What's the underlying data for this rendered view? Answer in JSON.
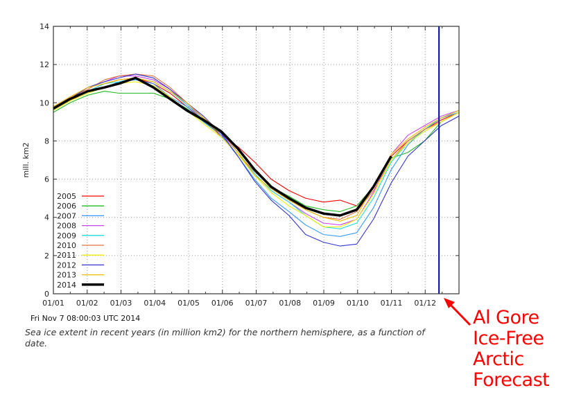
{
  "chart_data": {
    "type": "line",
    "ylabel": "mill. km2",
    "ylim": [
      0,
      14
    ],
    "yticks": [
      "0",
      "2",
      "4",
      "6",
      "8",
      "10",
      "12",
      "14"
    ],
    "xlim_days": [
      0,
      365
    ],
    "xticks": [
      "01/01",
      "01/02",
      "01/03",
      "01/04",
      "01/05",
      "01/06",
      "01/07",
      "01/08",
      "01/09",
      "01/10",
      "01/11",
      "01/12"
    ],
    "grid": true,
    "legend_position": "bottom-left",
    "x_days": [
      0,
      15,
      31,
      46,
      59,
      74,
      90,
      105,
      120,
      135,
      151,
      166,
      181,
      196,
      212,
      227,
      243,
      258,
      273,
      288,
      304,
      319,
      334,
      349,
      365
    ],
    "series": [
      {
        "name": "2005",
        "color": "#ff0000",
        "values": [
          9.6,
          10.1,
          10.6,
          11.0,
          11.2,
          11.3,
          11.0,
          10.5,
          9.8,
          9.1,
          8.3,
          7.7,
          6.9,
          6.0,
          5.4,
          5.0,
          4.8,
          4.9,
          4.6,
          5.6,
          7.2,
          8.0,
          8.6,
          9.1,
          9.5
        ]
      },
      {
        "name": "2006",
        "color": "#22bb22",
        "values": [
          9.5,
          10.0,
          10.4,
          10.6,
          10.5,
          10.5,
          10.5,
          10.2,
          9.7,
          9.0,
          8.4,
          7.6,
          6.5,
          5.6,
          5.1,
          4.6,
          4.4,
          4.3,
          4.6,
          5.6,
          7.1,
          7.4,
          8.0,
          9.0,
          9.5
        ]
      },
      {
        "name": "2007",
        "color": "#3399ff",
        "values": [
          9.6,
          10.2,
          10.6,
          10.8,
          11.1,
          11.2,
          11.0,
          10.3,
          9.8,
          9.0,
          8.3,
          7.2,
          6.0,
          5.0,
          4.3,
          3.6,
          3.1,
          3.0,
          3.2,
          4.5,
          6.5,
          7.8,
          8.6,
          9.2,
          9.5
        ]
      },
      {
        "name": "2008",
        "color": "#cc44ee",
        "values": [
          9.7,
          10.3,
          10.8,
          11.1,
          11.4,
          11.4,
          11.2,
          10.7,
          9.9,
          9.2,
          8.4,
          7.4,
          6.3,
          5.4,
          4.8,
          4.2,
          3.7,
          3.6,
          3.9,
          5.3,
          7.3,
          8.3,
          8.8,
          9.3,
          9.6
        ]
      },
      {
        "name": "2009",
        "color": "#22dddd",
        "values": [
          9.6,
          10.2,
          10.6,
          11.0,
          11.1,
          11.3,
          11.1,
          10.6,
          9.9,
          9.1,
          8.5,
          7.4,
          6.3,
          5.4,
          4.8,
          4.1,
          3.5,
          3.4,
          3.7,
          5.0,
          6.9,
          7.9,
          8.6,
          9.2,
          9.6
        ]
      },
      {
        "name": "2010",
        "color": "#e07040",
        "values": [
          9.8,
          10.3,
          10.7,
          11.2,
          11.4,
          11.5,
          11.4,
          10.8,
          10.0,
          9.2,
          8.2,
          7.3,
          6.4,
          5.6,
          5.0,
          4.4,
          4.0,
          3.9,
          4.3,
          5.4,
          7.0,
          8.0,
          8.6,
          9.0,
          9.5
        ]
      },
      {
        "name": "2011",
        "color": "#eeee00",
        "values": [
          9.6,
          10.1,
          10.5,
          10.8,
          11.0,
          11.1,
          10.9,
          10.3,
          9.6,
          8.9,
          8.2,
          7.3,
          6.2,
          5.3,
          4.6,
          4.1,
          3.5,
          3.5,
          3.9,
          5.2,
          7.0,
          7.9,
          8.5,
          9.0,
          9.5
        ]
      },
      {
        "name": "2012",
        "color": "#3333cc",
        "values": [
          9.7,
          10.2,
          10.8,
          11.1,
          11.3,
          11.5,
          11.3,
          10.7,
          10.0,
          9.3,
          8.4,
          7.2,
          5.9,
          4.9,
          4.1,
          3.1,
          2.7,
          2.5,
          2.6,
          3.9,
          5.8,
          7.2,
          8.0,
          8.8,
          9.3
        ]
      },
      {
        "name": "2013",
        "color": "#eebb00",
        "values": [
          9.8,
          10.3,
          10.8,
          11.0,
          11.2,
          11.3,
          11.1,
          10.6,
          10.0,
          9.2,
          8.5,
          7.4,
          6.2,
          5.5,
          4.9,
          4.4,
          4.0,
          3.8,
          4.1,
          5.6,
          7.3,
          8.1,
          8.7,
          9.2,
          9.6
        ]
      },
      {
        "name": "2014",
        "color": "#000000",
        "values": [
          9.7,
          10.2,
          10.6,
          10.8,
          11.0,
          11.3,
          10.8,
          10.2,
          9.6,
          9.1,
          8.5,
          7.6,
          6.5,
          5.6,
          5.0,
          4.5,
          4.2,
          4.1,
          4.4,
          5.6,
          7.2,
          null,
          null,
          null,
          null
        ]
      }
    ],
    "marker_line": {
      "day": 347,
      "color": "#0000bb"
    }
  },
  "timestamp": "Fri Nov 7 08:00:03 UTC 2014",
  "caption": "Sea ice extent in recent years (in million km2) for the northern hemisphere, as a function of date.",
  "annotation": {
    "lines": [
      "Al Gore",
      "Ice-Free",
      "Arctic",
      "Forecast"
    ],
    "color": "#ff0000"
  }
}
